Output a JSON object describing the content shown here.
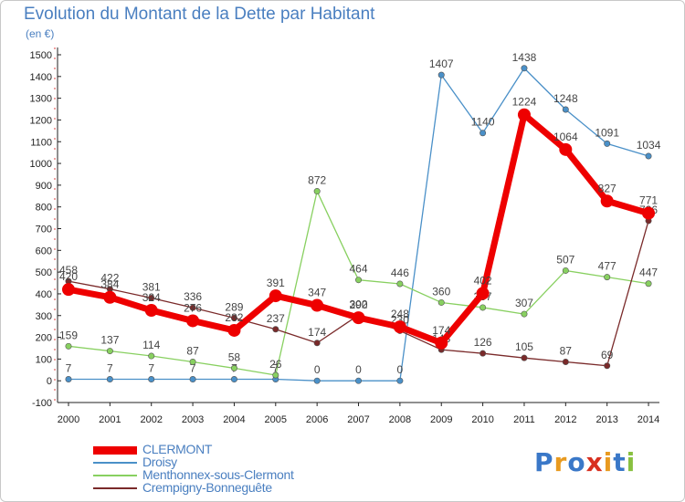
{
  "title": "Evolution du Montant de la Dette par Habitant",
  "unit": "(en €)",
  "logo": "Proxiti",
  "chart_data": {
    "type": "line",
    "x": [
      "2000",
      "2001",
      "2002",
      "2003",
      "2004",
      "2005",
      "2006",
      "2007",
      "2008",
      "2009",
      "2010",
      "2011",
      "2012",
      "2013",
      "2014"
    ],
    "ylim": [
      -100,
      1500
    ],
    "yticks": [
      -100,
      0,
      100,
      200,
      300,
      400,
      500,
      600,
      700,
      800,
      900,
      1000,
      1100,
      1200,
      1300,
      1400,
      1500
    ],
    "grid": false,
    "legend_position": "bottom-left",
    "series": [
      {
        "name": "Droisy",
        "color": "#4a90c8",
        "values": [
          7,
          7,
          7,
          7,
          7,
          7,
          0,
          0,
          0,
          1407,
          1140,
          1438,
          1248,
          1091,
          1034
        ]
      },
      {
        "name": "Menthonnex-sous-Clermont",
        "color": "#88d060",
        "values": [
          159,
          137,
          114,
          87,
          58,
          26,
          872,
          464,
          446,
          360,
          337,
          307,
          507,
          477,
          447
        ]
      },
      {
        "name": "Crempigny-Bonneguête",
        "color": "#7a2a2a",
        "values": [
          458,
          422,
          381,
          336,
          289,
          237,
          174,
          302,
          230,
          143,
          126,
          105,
          87,
          69,
          736
        ]
      },
      {
        "name": "CLERMONT",
        "color": "#ee0000",
        "values": [
          420,
          384,
          324,
          276,
          232,
          391,
          347,
          290,
          248,
          174,
          402,
          1224,
          1064,
          827,
          771
        ]
      }
    ],
    "legend_order": [
      "CLERMONT",
      "Droisy",
      "Menthonnex-sous-Clermont",
      "Crempigny-Bonneguête"
    ]
  }
}
